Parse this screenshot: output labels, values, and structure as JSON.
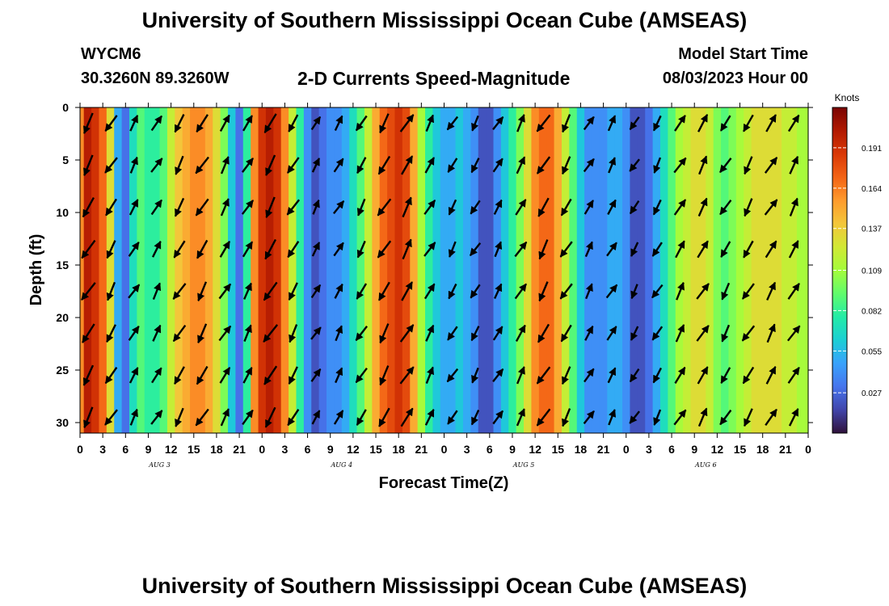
{
  "header": {
    "title": "University of Southern Mississippi Ocean Cube (AMSEAS)",
    "station": "WYCM6",
    "coordinates": "30.3260N  89.3260W",
    "plot_title": "2-D Currents Speed-Magnitude",
    "model_start_label": "Model Start Time",
    "model_start_value": "08/03/2023 Hour 00"
  },
  "footer": {
    "title": "University of Southern Mississippi Ocean Cube (AMSEAS)"
  },
  "chart_data": {
    "type": "heatmap",
    "xlabel": "Forecast Time(Z)",
    "ylabel": "Depth (ft)",
    "x_ticks": [
      "0",
      "3",
      "6",
      "9",
      "12",
      "15",
      "18",
      "21",
      "0",
      "3",
      "6",
      "9",
      "12",
      "15",
      "18",
      "21",
      "0",
      "3",
      "6",
      "9",
      "12",
      "15",
      "18",
      "21",
      "0",
      "3",
      "6",
      "9",
      "12",
      "15",
      "18",
      "21",
      "0"
    ],
    "day_labels": [
      "AUG 3",
      "AUG 4",
      "AUG 5",
      "AUG 6"
    ],
    "y_ticks": [
      "0",
      "5",
      "10",
      "15",
      "20",
      "25",
      "30"
    ],
    "y_range": [
      0,
      31
    ],
    "x_range_hours": [
      0,
      96
    ],
    "colorbar": {
      "title": "Knots",
      "ticks": [
        "0.191",
        "0.164",
        "0.137",
        "0.109",
        "0.082",
        "0.055",
        "0.027"
      ],
      "range": [
        0,
        0.218
      ],
      "colors": [
        "#30123b",
        "#4145ab",
        "#4675ed",
        "#39a2fc",
        "#1bcfd4",
        "#24eca6",
        "#61fc6c",
        "#a4fc3b",
        "#d1e834",
        "#f3c63a",
        "#fe9b2d",
        "#f36315",
        "#d93806",
        "#b11901",
        "#7a0403"
      ]
    },
    "speed_profile": {
      "hours": [
        0,
        1,
        2,
        3,
        4,
        5,
        6,
        7,
        8,
        9,
        10,
        11,
        12,
        13,
        14,
        15,
        16,
        17,
        18,
        19,
        20,
        21,
        22,
        23,
        24,
        25,
        26,
        27,
        28,
        29,
        30,
        31,
        32,
        33,
        34,
        35,
        36,
        37,
        38,
        39,
        40,
        41,
        42,
        43,
        44,
        45,
        46,
        47,
        48,
        49,
        50,
        51,
        52,
        53,
        54,
        55,
        56,
        57,
        58,
        59,
        60,
        61,
        62,
        63,
        64,
        65,
        66,
        67,
        68,
        69,
        70,
        71,
        72,
        73,
        74,
        75,
        76,
        77,
        78,
        79,
        80,
        81,
        82,
        83,
        84,
        85,
        86,
        87,
        88,
        89,
        90,
        91,
        92,
        93,
        94,
        95,
        96
      ],
      "knots": [
        0.16,
        0.2,
        0.19,
        0.17,
        0.13,
        0.05,
        0.03,
        0.07,
        0.09,
        0.08,
        0.08,
        0.09,
        0.12,
        0.14,
        0.15,
        0.16,
        0.16,
        0.15,
        0.13,
        0.1,
        0.06,
        0.03,
        0.08,
        0.16,
        0.19,
        0.2,
        0.19,
        0.16,
        0.12,
        0.08,
        0.04,
        0.02,
        0.03,
        0.04,
        0.04,
        0.05,
        0.07,
        0.09,
        0.12,
        0.15,
        0.17,
        0.18,
        0.19,
        0.18,
        0.15,
        0.11,
        0.08,
        0.06,
        0.05,
        0.05,
        0.06,
        0.05,
        0.04,
        0.02,
        0.02,
        0.04,
        0.06,
        0.08,
        0.1,
        0.13,
        0.16,
        0.17,
        0.17,
        0.15,
        0.12,
        0.09,
        0.06,
        0.04,
        0.04,
        0.04,
        0.05,
        0.05,
        0.04,
        0.02,
        0.02,
        0.03,
        0.05,
        0.07,
        0.09,
        0.11,
        0.12,
        0.13,
        0.13,
        0.12,
        0.1,
        0.09,
        0.1,
        0.11,
        0.12,
        0.13,
        0.13,
        0.13,
        0.13,
        0.12,
        0.12,
        0.11,
        0.11
      ]
    }
  }
}
